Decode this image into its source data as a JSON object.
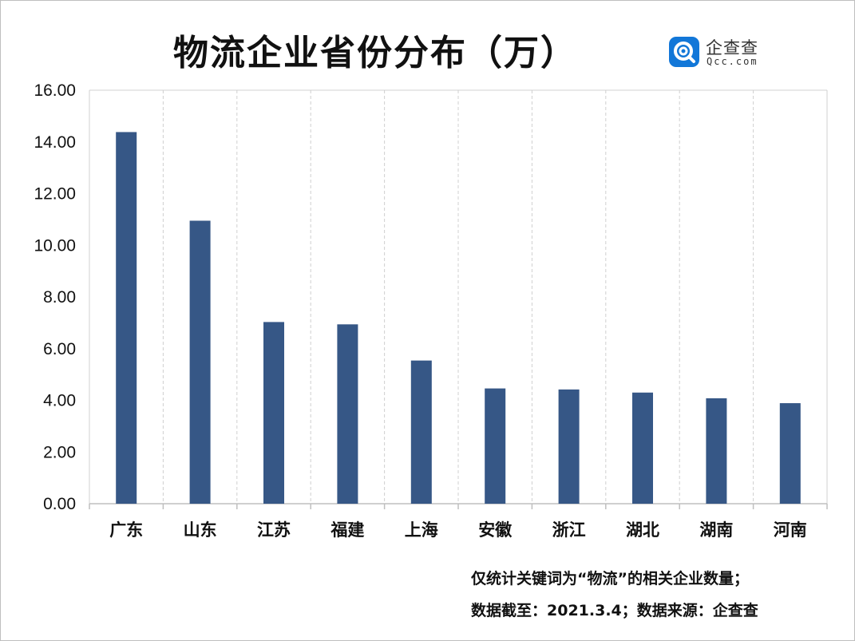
{
  "title": "物流企业省份分布（万）",
  "logo": {
    "name_cn": "企查查",
    "name_en": "Qcc.com"
  },
  "colors": {
    "bar": "#365786",
    "grid": "#d0d0d0",
    "axis": "#bfbfbf"
  },
  "chart_data": {
    "type": "bar",
    "title": "物流企业省份分布（万）",
    "categories": [
      "广东",
      "山东",
      "江苏",
      "福建",
      "上海",
      "安徽",
      "浙江",
      "湖北",
      "湖南",
      "河南"
    ],
    "values": [
      14.38,
      10.95,
      7.03,
      6.94,
      5.54,
      4.46,
      4.42,
      4.3,
      4.08,
      3.89
    ],
    "ylim": [
      0,
      16
    ],
    "yticks": [
      "0.00",
      "2.00",
      "4.00",
      "6.00",
      "8.00",
      "10.00",
      "12.00",
      "14.00",
      "16.00"
    ],
    "xlabel": "",
    "ylabel": "",
    "grid": "vertical dashed between categories",
    "legend": "none"
  },
  "footnotes": [
    "仅统计关键词为“物流”的相关企业数量；",
    "数据截至：2021.3.4；数据来源：企查查"
  ]
}
